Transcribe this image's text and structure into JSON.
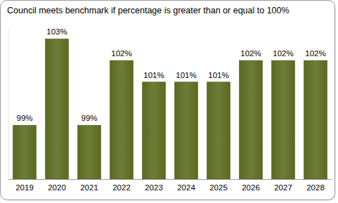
{
  "chart_data": {
    "type": "bar",
    "title": "Council meets benchmark if percentage is greater than or equal to 100%",
    "categories": [
      "2019",
      "2020",
      "2021",
      "2022",
      "2023",
      "2024",
      "2025",
      "2026",
      "2027",
      "2028"
    ],
    "values": [
      99,
      103,
      99,
      102,
      101,
      101,
      101,
      102,
      102,
      102
    ],
    "value_labels": [
      "99%",
      "103%",
      "99%",
      "102%",
      "101%",
      "101%",
      "101%",
      "102%",
      "102%",
      "102%"
    ],
    "color": "#5a6a1e",
    "ylim": [
      96.5,
      103.5
    ],
    "grid": false,
    "data_labels": true,
    "tick_labels": "x"
  }
}
